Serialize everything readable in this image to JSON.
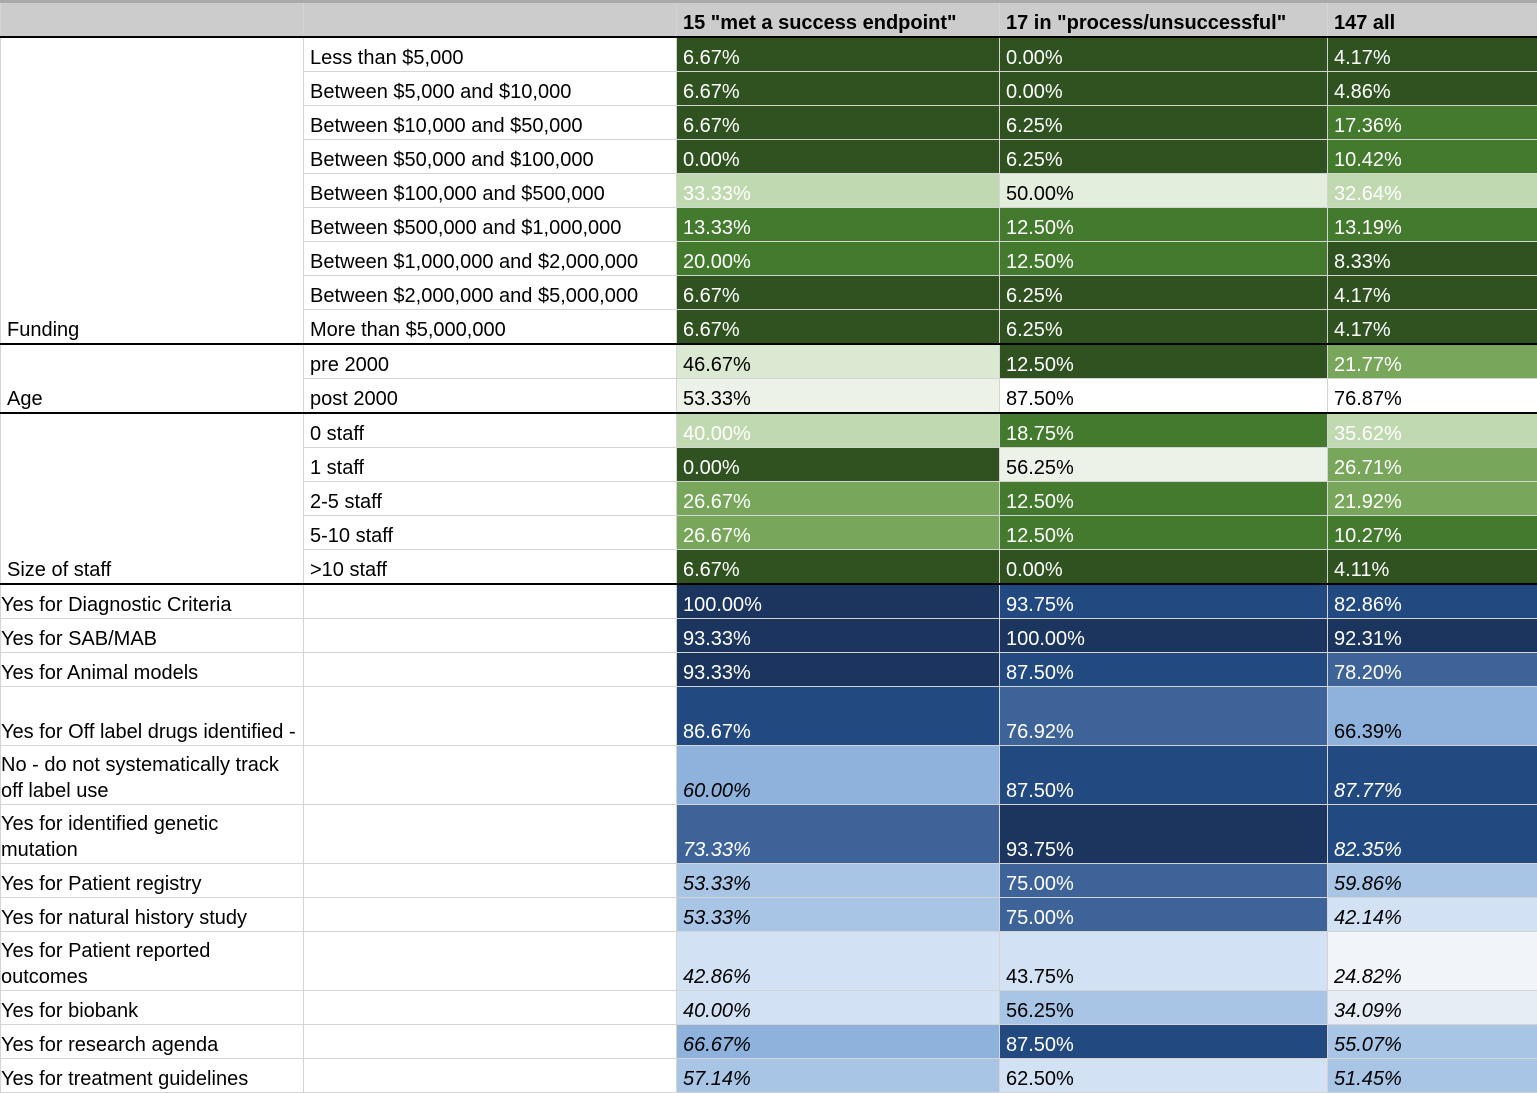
{
  "columns": {
    "c1": "",
    "c2": "",
    "c3": "15 \"met a success endpoint\"",
    "c4": "17 in \"process/unsuccessful\"",
    "c5": "147 all"
  },
  "groups": {
    "funding": "Funding",
    "age": "Age",
    "staff": "Size of staff"
  },
  "funding_rows": [
    {
      "label": "Less than $5,000",
      "v1": "6.67%",
      "v2": "0.00%",
      "v3": "4.17%"
    },
    {
      "label": "Between $5,000 and $10,000",
      "v1": "6.67%",
      "v2": "0.00%",
      "v3": "4.86%"
    },
    {
      "label": "Between $10,000 and $50,000",
      "v1": "6.67%",
      "v2": "6.25%",
      "v3": "17.36%"
    },
    {
      "label": "Between $50,000 and $100,000",
      "v1": "0.00%",
      "v2": "6.25%",
      "v3": "10.42%"
    },
    {
      "label": "Between $100,000 and $500,000",
      "v1": "33.33%",
      "v2": "50.00%",
      "v3": "32.64%"
    },
    {
      "label": "Between $500,000 and $1,000,000",
      "v1": "13.33%",
      "v2": "12.50%",
      "v3": "13.19%"
    },
    {
      "label": "Between $1,000,000 and $2,000,000",
      "v1": "20.00%",
      "v2": "12.50%",
      "v3": "8.33%"
    },
    {
      "label": "Between $2,000,000 and $5,000,000",
      "v1": "6.67%",
      "v2": "6.25%",
      "v3": "4.17%"
    },
    {
      "label": "More than $5,000,000",
      "v1": "6.67%",
      "v2": "6.25%",
      "v3": "4.17%"
    }
  ],
  "age_rows": [
    {
      "label": "pre 2000",
      "v1": "46.67%",
      "v2": "12.50%",
      "v3": "21.77%"
    },
    {
      "label": "post 2000",
      "v1": "53.33%",
      "v2": "87.50%",
      "v3": "76.87%"
    }
  ],
  "staff_rows": [
    {
      "label": "0 staff",
      "v1": "40.00%",
      "v2": "18.75%",
      "v3": "35.62%"
    },
    {
      "label": "1 staff",
      "v1": "0.00%",
      "v2": "56.25%",
      "v3": "26.71%"
    },
    {
      "label": "2-5 staff",
      "v1": "26.67%",
      "v2": "12.50%",
      "v3": "21.92%"
    },
    {
      "label": "5-10 staff",
      "v1": "26.67%",
      "v2": "12.50%",
      "v3": "10.27%"
    },
    {
      "label": ">10 staff",
      "v1": "6.67%",
      "v2": "0.00%",
      "v3": "4.11%"
    }
  ],
  "yes_rows": [
    {
      "label": "Yes for Diagnostic Criteria",
      "v1": "100.00%",
      "v2": "93.75%",
      "v3": "82.86%"
    },
    {
      "label": "Yes for SAB/MAB",
      "v1": "93.33%",
      "v2": "100.00%",
      "v3": "92.31%"
    },
    {
      "label": "Yes for Animal models",
      "v1": "93.33%",
      "v2": "87.50%",
      "v3": "78.20%"
    },
    {
      "label": "Yes for Off label drugs identified -",
      "v1": "86.67%",
      "v2": "76.92%",
      "v3": "66.39%"
    },
    {
      "label": "No - do not systematically track off label use",
      "v1": "60.00%",
      "v2": "87.50%",
      "v3": "87.77%"
    },
    {
      "label": "Yes for identified genetic mutation",
      "v1": "73.33%",
      "v2": "93.75%",
      "v3": "82.35%"
    },
    {
      "label": "Yes for Patient registry",
      "v1": "53.33%",
      "v2": "75.00%",
      "v3": "59.86%"
    },
    {
      "label": "Yes for natural history study",
      "v1": "53.33%",
      "v2": "75.00%",
      "v3": "42.14%"
    },
    {
      "label": "Yes for Patient reported outcomes",
      "v1": "42.86%",
      "v2": "43.75%",
      "v3": "24.82%"
    },
    {
      "label": "Yes for biobank",
      "v1": "40.00%",
      "v2": "56.25%",
      "v3": "34.09%"
    },
    {
      "label": "Yes for research agenda",
      "v1": "66.67%",
      "v2": "87.50%",
      "v3": "55.07%"
    },
    {
      "label": "Yes for treatment guidelines",
      "v1": "57.14%",
      "v2": "62.50%",
      "v3": "51.45%"
    }
  ],
  "colors": {
    "green_dark": "#2f5220",
    "green_mid": "#447a2e",
    "green_light": "#78a65a",
    "green_pale": "#c0d9b0",
    "green_faint": "#e4eedc",
    "blue_navy": "#1b355e",
    "blue_dark": "#234a80",
    "blue_mid": "#3d6398",
    "blue_light": "#8eb2dc",
    "blue_pale": "#a8c5e6",
    "blue_faint": "#d2e1f3",
    "header_gray": "#cccccc"
  }
}
